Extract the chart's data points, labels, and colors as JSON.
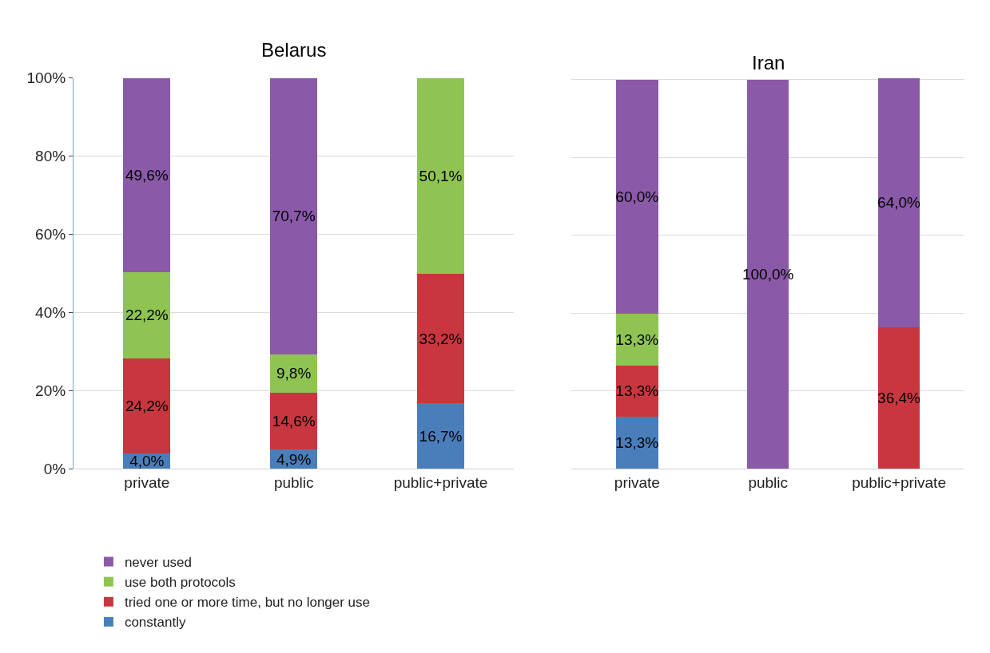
{
  "chart_data": [
    {
      "type": "bar",
      "title": "Belarus",
      "stacked": true,
      "categories": [
        "private",
        "public",
        "public+private"
      ],
      "ylim": [
        0,
        100
      ],
      "yticks": [
        {
          "value": 0,
          "label": "0%"
        },
        {
          "value": 20,
          "label": "20%"
        },
        {
          "value": 40,
          "label": "40%"
        },
        {
          "value": 60,
          "label": "60%"
        },
        {
          "value": 80,
          "label": "80%"
        },
        {
          "value": 100,
          "label": "100%"
        }
      ],
      "grid": "y",
      "legend": "bottom",
      "series": [
        {
          "name": "constantly",
          "color": "#4a7ebb",
          "values": [
            4.0,
            4.9,
            16.7
          ],
          "value_labels": [
            "4,0%",
            "4,9%",
            "16,7%"
          ]
        },
        {
          "name": "tried one or more time, but no longer use",
          "color": "#c8373f",
          "values": [
            24.2,
            14.6,
            33.2
          ],
          "value_labels": [
            "24,2%",
            "14,6%",
            "33,2%"
          ]
        },
        {
          "name": "use both protocols",
          "color": "#8fc453",
          "values": [
            22.2,
            9.8,
            50.1
          ],
          "value_labels": [
            "22,2%",
            "9,8%",
            "50,1%"
          ]
        },
        {
          "name": "never used",
          "color": "#8a5aa8",
          "values": [
            49.6,
            70.7,
            null
          ],
          "value_labels": [
            "49,6%",
            "70,7%",
            null
          ]
        }
      ]
    },
    {
      "type": "bar",
      "title": "Iran",
      "stacked": true,
      "categories": [
        "private",
        "public",
        "public+private"
      ],
      "ylim": [
        0,
        100.4
      ],
      "yticks": [
        0,
        20,
        40,
        60,
        80,
        100
      ],
      "grid": "y",
      "tick_labels": "x",
      "series": [
        {
          "color": "#4a7ebb",
          "values": [
            13.3,
            null,
            null
          ],
          "value_labels": [
            "13,3%",
            null,
            null
          ]
        },
        {
          "color": "#c8373f",
          "values": [
            13.3,
            null,
            36.4
          ],
          "value_labels": [
            "13,3%",
            null,
            "36,4%"
          ]
        },
        {
          "color": "#8fc453",
          "values": [
            13.3,
            null,
            null
          ],
          "value_labels": [
            "13,3%",
            null,
            null
          ]
        },
        {
          "color": "#8a5aa8",
          "values": [
            60.0,
            100.0,
            64.0
          ],
          "value_labels": [
            "60,0%",
            "100,0%",
            "64,0%"
          ]
        }
      ]
    }
  ]
}
